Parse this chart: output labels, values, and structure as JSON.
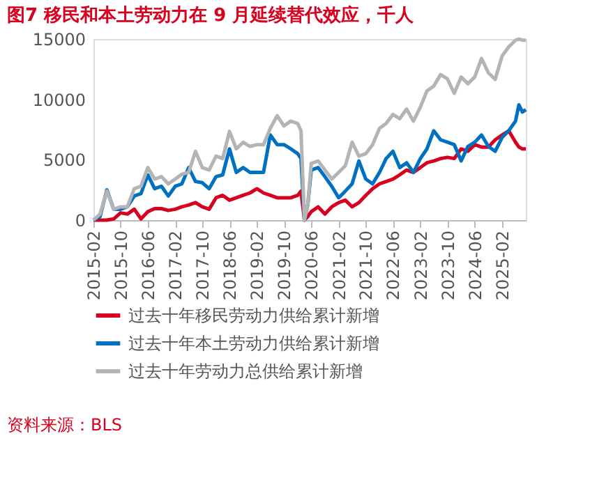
{
  "chart_data": {
    "type": "line",
    "title": "图7  移民和本土劳动力在 9 月延续替代效应，千人",
    "annotations": [
      "资料来源：BLS"
    ],
    "x": [
      "2015-02",
      "2015-04",
      "2015-06",
      "2015-08",
      "2015-10",
      "2015-12",
      "2016-02",
      "2016-04",
      "2016-06",
      "2016-08",
      "2016-10",
      "2016-12",
      "2017-02",
      "2017-04",
      "2017-06",
      "2017-08",
      "2017-10",
      "2017-12",
      "2018-02",
      "2018-04",
      "2018-06",
      "2018-08",
      "2018-10",
      "2018-12",
      "2019-02",
      "2019-04",
      "2019-06",
      "2019-08",
      "2019-10",
      "2019-12",
      "2020-02",
      "2020-03",
      "2020-04",
      "2020-05",
      "2020-06",
      "2020-08",
      "2020-10",
      "2020-12",
      "2021-02",
      "2021-04",
      "2021-06",
      "2021-08",
      "2021-10",
      "2021-12",
      "2022-02",
      "2022-04",
      "2022-06",
      "2022-08",
      "2022-10",
      "2022-12",
      "2023-02",
      "2023-04",
      "2023-06",
      "2023-08",
      "2023-10",
      "2023-12",
      "2024-02",
      "2024-04",
      "2024-06",
      "2024-08",
      "2024-10",
      "2024-12",
      "2025-02",
      "2025-04",
      "2025-06",
      "2025-07",
      "2025-08",
      "2025-09"
    ],
    "series": [
      {
        "name": "过去十年移民劳动力供给累计新增",
        "color": "#d7001f",
        "values": [
          0,
          0,
          0,
          100,
          600,
          500,
          900,
          100,
          700,
          950,
          950,
          800,
          900,
          1100,
          1250,
          1450,
          1100,
          900,
          1850,
          2050,
          1650,
          1850,
          2050,
          2250,
          2600,
          2250,
          2050,
          1850,
          1850,
          1850,
          2050,
          2400,
          0,
          300,
          700,
          1100,
          500,
          1100,
          1450,
          1650,
          1100,
          1450,
          2050,
          2600,
          3000,
          3200,
          3400,
          3750,
          4150,
          3950,
          4350,
          4750,
          4900,
          5100,
          5200,
          5100,
          5900,
          5700,
          6250,
          6050,
          6050,
          6650,
          7050,
          7400,
          6450,
          6050,
          5900,
          5900
        ]
      },
      {
        "name": "过去十年本土劳动力供给累计新增",
        "color": "#0070c0",
        "values": [
          0,
          300,
          2500,
          900,
          900,
          1100,
          2000,
          2200,
          3750,
          2600,
          2800,
          2000,
          2800,
          3000,
          4350,
          3200,
          3100,
          2600,
          3600,
          3750,
          5900,
          3950,
          4350,
          3950,
          3950,
          3950,
          7050,
          6250,
          6250,
          5900,
          5500,
          5100,
          0,
          1300,
          4150,
          4350,
          3600,
          2800,
          1850,
          2400,
          3000,
          4900,
          3400,
          3000,
          3950,
          5100,
          5700,
          4350,
          4750,
          3950,
          5100,
          5900,
          7400,
          6650,
          6450,
          6250,
          4900,
          6100,
          6450,
          7050,
          6100,
          5700,
          6850,
          7400,
          8200,
          9550,
          8950,
          9150
        ]
      },
      {
        "name": "过去十年劳动力总供给累计新增",
        "color": "#b4b4b4",
        "values": [
          0,
          500,
          2400,
          900,
          1100,
          1100,
          2600,
          2800,
          4350,
          3400,
          3600,
          3000,
          3400,
          3800,
          3950,
          5700,
          4350,
          4150,
          5300,
          5100,
          7350,
          5900,
          6450,
          6100,
          6250,
          6250,
          7600,
          8650,
          7800,
          8200,
          8000,
          7400,
          0,
          1300,
          4700,
          4900,
          4150,
          3400,
          3950,
          4500,
          6450,
          5300,
          5500,
          6250,
          7600,
          8000,
          8750,
          8400,
          9200,
          8200,
          9350,
          10700,
          11100,
          12050,
          11700,
          10500,
          11850,
          11300,
          11850,
          13400,
          12200,
          11650,
          13600,
          14350,
          14900,
          15000,
          14900,
          14900
        ]
      }
    ],
    "xlim": [
      "2015-02",
      "2025-09"
    ],
    "xticks": [
      "2015-02",
      "2015-10",
      "2016-06",
      "2017-02",
      "2017-10",
      "2018-06",
      "2019-02",
      "2019-10",
      "2020-06",
      "2021-02",
      "2021-10",
      "2022-06",
      "2023-02",
      "2023-10",
      "2024-06",
      "2025-02"
    ],
    "ylim": [
      0,
      15000
    ],
    "yticks": [
      0,
      5000,
      10000,
      15000
    ],
    "grid": false,
    "legend": "bottom",
    "marker": "none",
    "line_style": "solid"
  }
}
